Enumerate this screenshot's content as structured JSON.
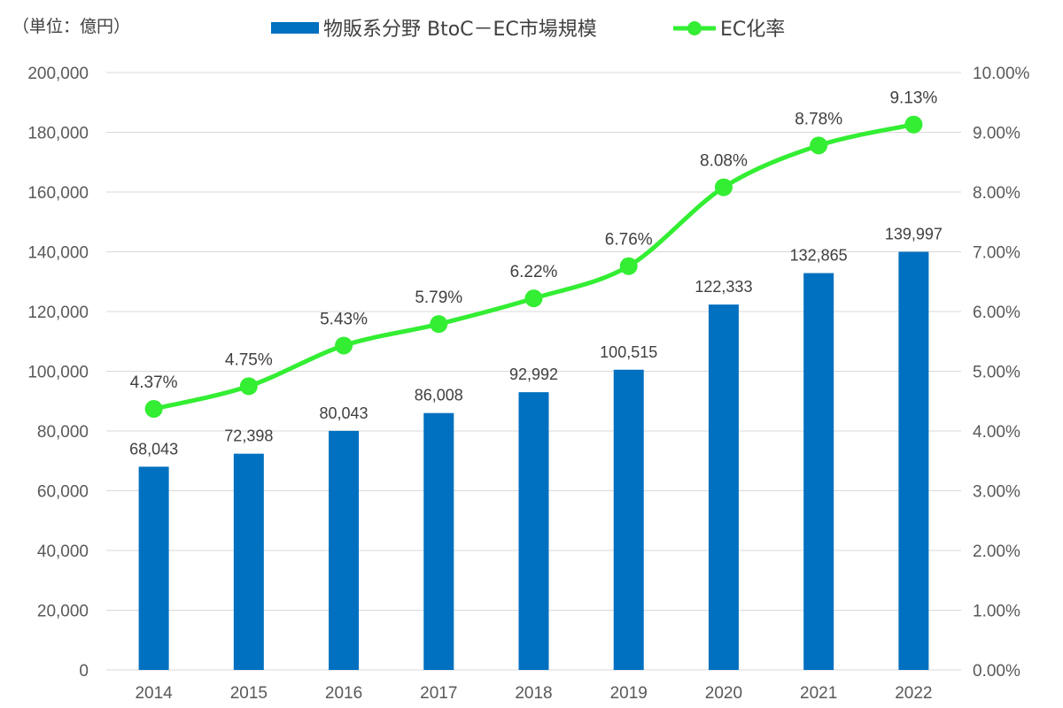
{
  "chart_data": {
    "type": "bar",
    "unit_label": "（単位：億円）",
    "categories": [
      "2014",
      "2015",
      "2016",
      "2017",
      "2018",
      "2019",
      "2020",
      "2021",
      "2022"
    ],
    "series": [
      {
        "name": "物販系分野 BtoC－EC市場規模",
        "type": "bar",
        "axis": "left",
        "color": "#0070C0",
        "values": [
          68043,
          72398,
          80043,
          86008,
          92992,
          100515,
          122333,
          132865,
          139997
        ],
        "labels": [
          "68,043",
          "72,398",
          "80,043",
          "86,008",
          "92,992",
          "100,515",
          "122,333",
          "132,865",
          "139,997"
        ]
      },
      {
        "name": "EC化率",
        "type": "line",
        "axis": "right",
        "color": "#33EE33",
        "values": [
          4.37,
          4.75,
          5.43,
          5.79,
          6.22,
          6.76,
          8.08,
          8.78,
          9.13
        ],
        "labels": [
          "4.37%",
          "4.75%",
          "5.43%",
          "5.79%",
          "6.22%",
          "6.76%",
          "8.08%",
          "8.78%",
          "9.13%"
        ]
      }
    ],
    "y_left": {
      "range": [
        0,
        200000
      ],
      "ticks": [
        "0",
        "20,000",
        "40,000",
        "60,000",
        "80,000",
        "100,000",
        "120,000",
        "140,000",
        "160,000",
        "180,000",
        "200,000"
      ]
    },
    "y_right": {
      "range": [
        0,
        10
      ],
      "ticks": [
        "0.00%",
        "1.00%",
        "2.00%",
        "3.00%",
        "4.00%",
        "5.00%",
        "6.00%",
        "7.00%",
        "8.00%",
        "9.00%",
        "10.00%"
      ]
    },
    "grid": true,
    "legend_position": "top"
  }
}
